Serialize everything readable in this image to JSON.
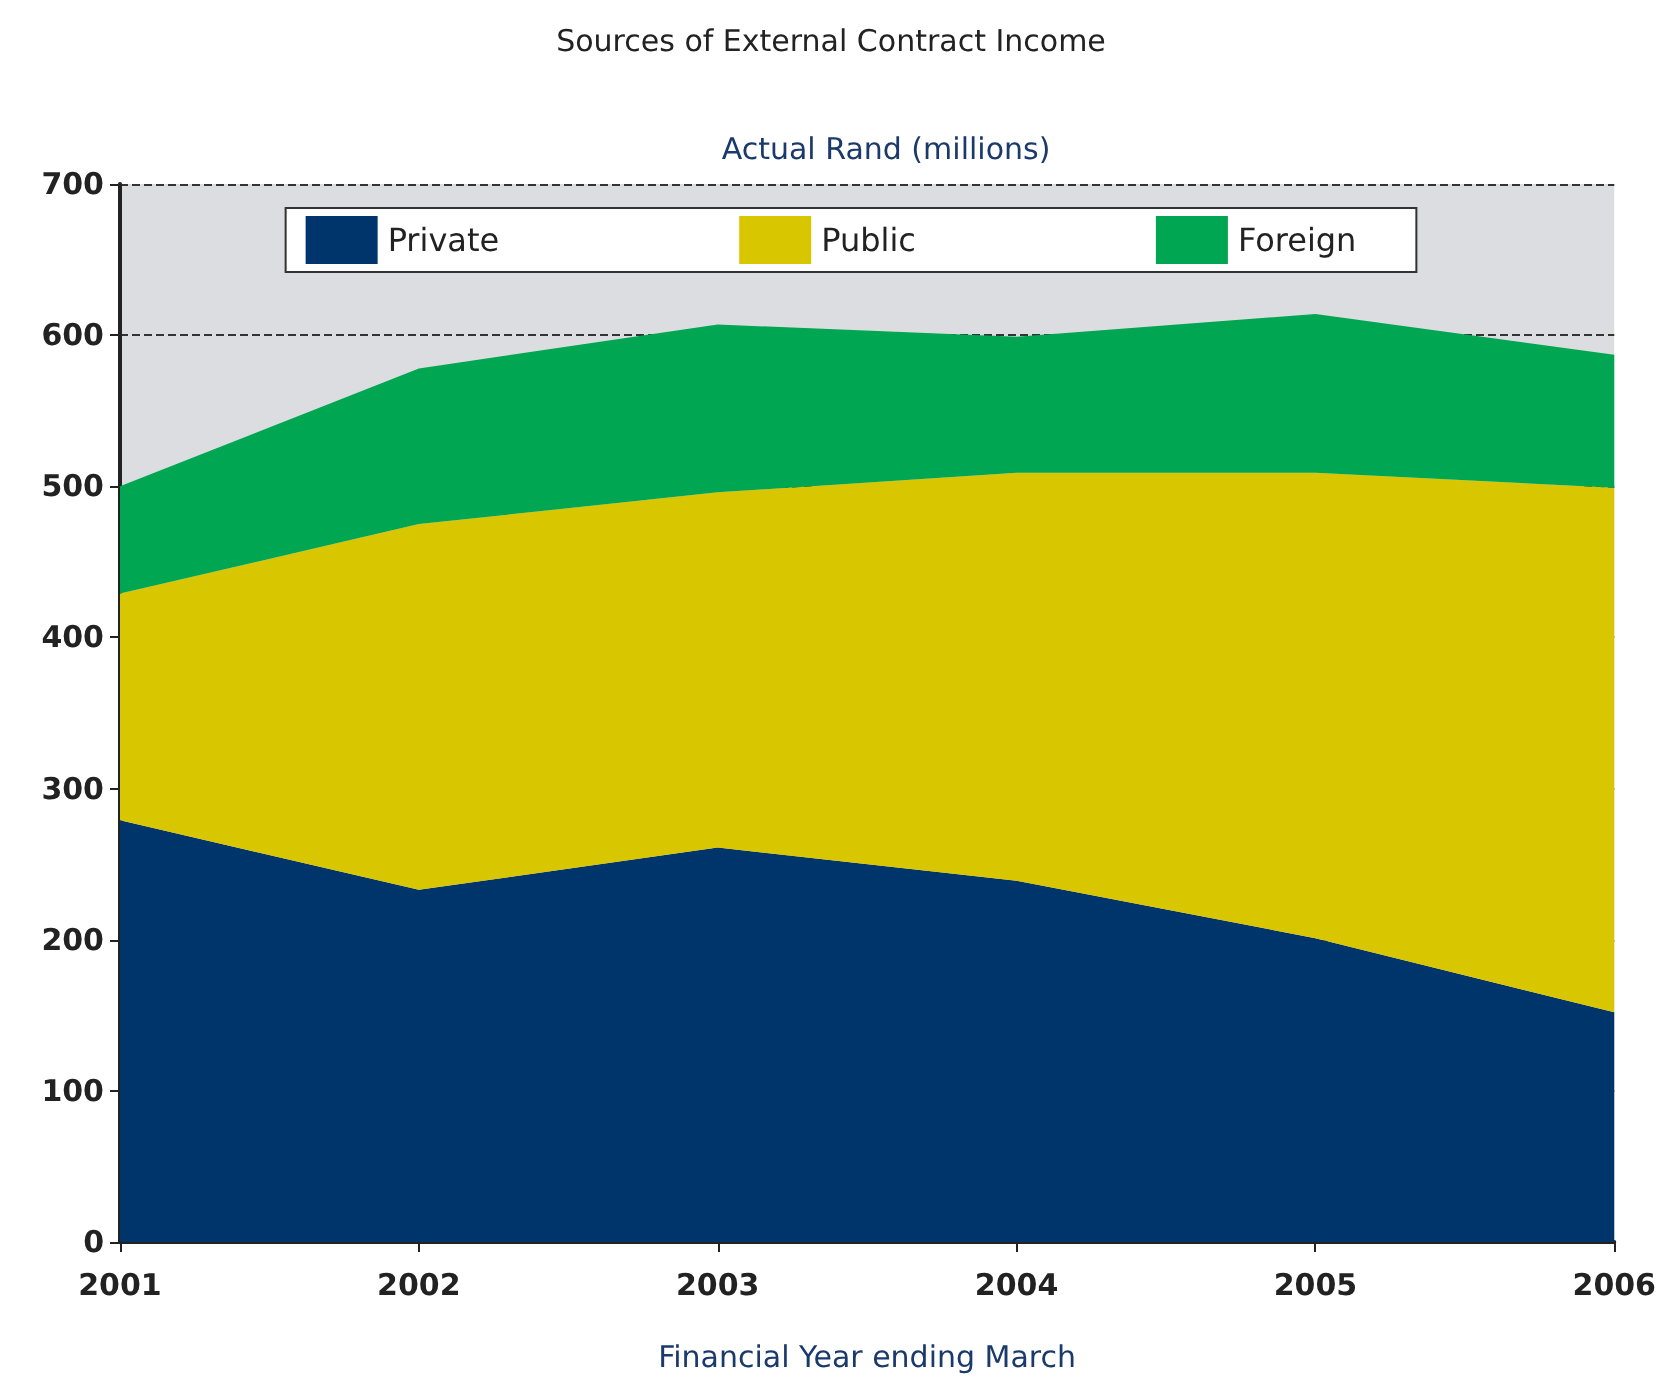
{
  "chart_data": {
    "type": "area",
    "title": "Sources of External Contract Income",
    "subtitle": "Actual Rand (millions)",
    "xlabel": "Financial Year ending March",
    "categories": [
      "2001",
      "2002",
      "2003",
      "2004",
      "2005",
      "2006"
    ],
    "series": [
      {
        "name": "Private",
        "color": "#00356b",
        "values": [
          279,
          233,
          261,
          239,
          201,
          152
        ]
      },
      {
        "name": "Public",
        "color": "#d8c700",
        "values": [
          150,
          242,
          235,
          270,
          308,
          347
        ]
      },
      {
        "name": "Foreign",
        "color": "#00a651",
        "values": [
          71,
          103,
          111,
          90,
          105,
          88
        ]
      }
    ],
    "stacked": true,
    "ylim": [
      0,
      700
    ],
    "yticks": [
      0,
      100,
      200,
      300,
      400,
      500,
      600,
      700
    ],
    "grid": "y",
    "legend": "top"
  }
}
